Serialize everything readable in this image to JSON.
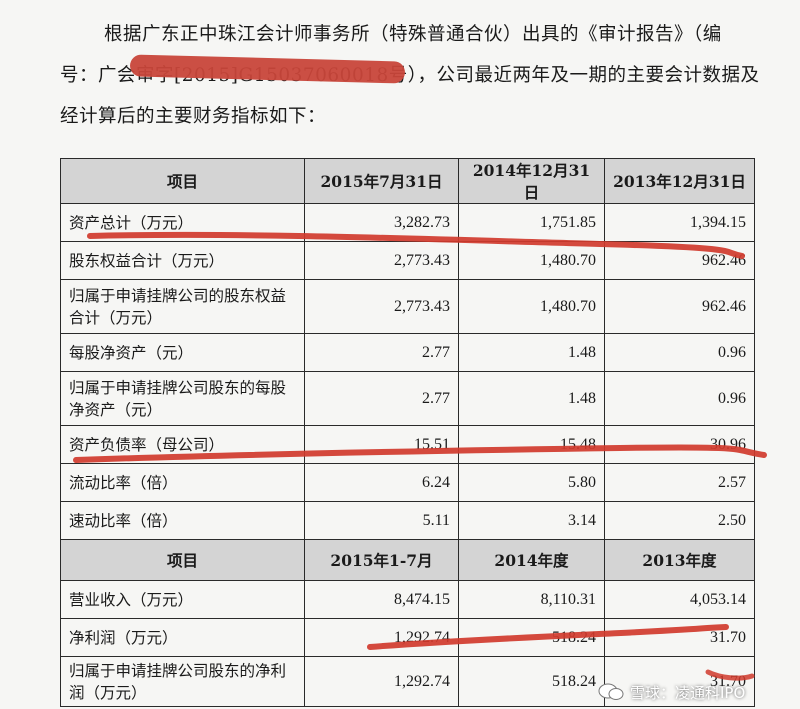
{
  "intro": {
    "line1": "根据广东正中珠江会计师事务所（特殊普通合伙）出具的《审计报告》（编",
    "line2": "号：广会审字[2015]G15037060018号），公司最近两年及一期的主要会计数据及",
    "line3": "经计算后的主要财务指标如下："
  },
  "table": {
    "header1": [
      "项目",
      "2015年7月31日",
      "2014年12月31日",
      "2013年12月31日"
    ],
    "rows1": [
      {
        "label": "资产总计（万元）",
        "v": [
          "3,282.73",
          "1,751.85",
          "1,394.15"
        ]
      },
      {
        "label": "股东权益合计（万元）",
        "v": [
          "2,773.43",
          "1,480.70",
          "962.46"
        ]
      },
      {
        "label": "归属于申请挂牌公司的股东权益合计（万元）",
        "v": [
          "2,773.43",
          "1,480.70",
          "962.46"
        ]
      },
      {
        "label": "每股净资产（元）",
        "v": [
          "2.77",
          "1.48",
          "0.96"
        ]
      },
      {
        "label": "归属于申请挂牌公司股东的每股净资产（元）",
        "v": [
          "2.77",
          "1.48",
          "0.96"
        ]
      },
      {
        "label": "资产负债率（母公司）",
        "v": [
          "15.51",
          "15.48",
          "30.96"
        ]
      },
      {
        "label": "流动比率（倍）",
        "v": [
          "6.24",
          "5.80",
          "2.57"
        ]
      },
      {
        "label": "速动比率（倍）",
        "v": [
          "5.11",
          "3.14",
          "2.50"
        ]
      }
    ],
    "header2": [
      "项目",
      "2015年1-7月",
      "2014年度",
      "2013年度"
    ],
    "rows2": [
      {
        "label": "营业收入（万元）",
        "v": [
          "8,474.15",
          "8,110.31",
          "4,053.14"
        ]
      },
      {
        "label": "净利润（万元）",
        "v": [
          "1,292.74",
          "518.24",
          "31.70"
        ]
      },
      {
        "label": "归属于申请挂牌公司股东的净利润（万元）",
        "v": [
          "1,292.74",
          "518.24",
          "31.70"
        ]
      }
    ]
  },
  "watermark": "雪球：凌通科IPO",
  "colors": {
    "annotation": "#d0392c",
    "header_bg": "#d4d4d4"
  }
}
